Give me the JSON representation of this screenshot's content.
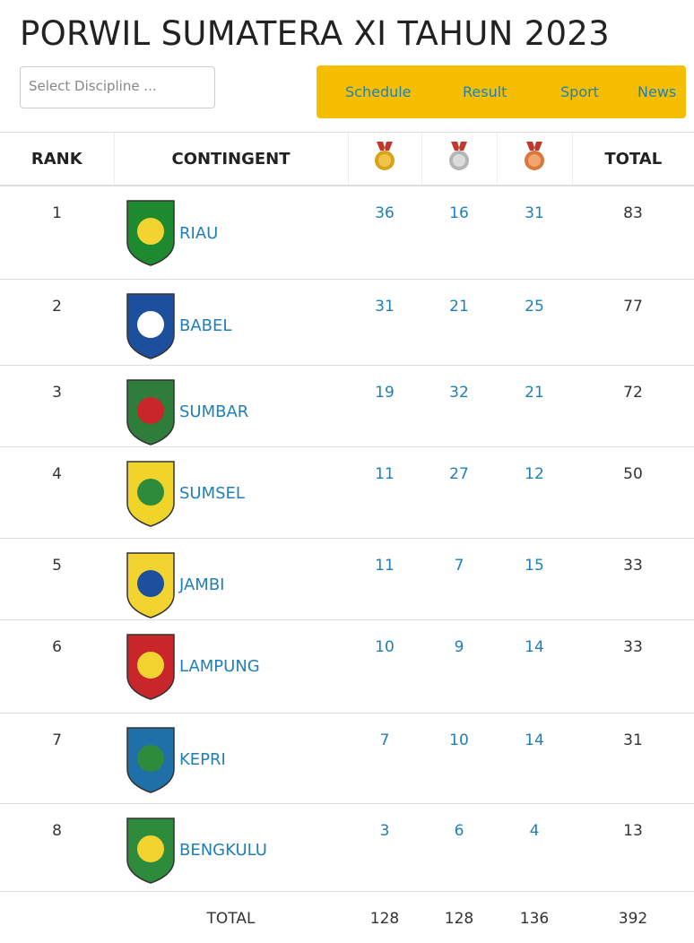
{
  "header": {
    "title": "PORWIL SUMATERA XI TAHUN 2023",
    "select_placeholder": "Select Discipline ...",
    "nav": [
      "Schedule",
      "Result",
      "Sport",
      "News"
    ]
  },
  "table": {
    "columns": {
      "rank": "RANK",
      "contingent": "CONTINGENT",
      "total": "TOTAL"
    },
    "rows": [
      {
        "rank": 1,
        "name": "RIAU",
        "gold": 36,
        "silver": 16,
        "bronze": 31,
        "total": 83
      },
      {
        "rank": 2,
        "name": "BABEL",
        "gold": 31,
        "silver": 21,
        "bronze": 25,
        "total": 77
      },
      {
        "rank": 3,
        "name": "SUMBAR",
        "gold": 19,
        "silver": 32,
        "bronze": 21,
        "total": 72
      },
      {
        "rank": 4,
        "name": "SUMSEL",
        "gold": 11,
        "silver": 27,
        "bronze": 12,
        "total": 50
      },
      {
        "rank": 5,
        "name": "JAMBI",
        "gold": 11,
        "silver": 7,
        "bronze": 15,
        "total": 33
      },
      {
        "rank": 6,
        "name": "LAMPUNG",
        "gold": 10,
        "silver": 9,
        "bronze": 14,
        "total": 33
      },
      {
        "rank": 7,
        "name": "KEPRI",
        "gold": 7,
        "silver": 10,
        "bronze": 14,
        "total": 31
      },
      {
        "rank": 8,
        "name": "BENGKULU",
        "gold": 3,
        "silver": 6,
        "bronze": 4,
        "total": 13
      }
    ],
    "footer": {
      "label": "TOTAL",
      "gold": 128,
      "silver": 128,
      "bronze": 136,
      "total": 392
    }
  }
}
